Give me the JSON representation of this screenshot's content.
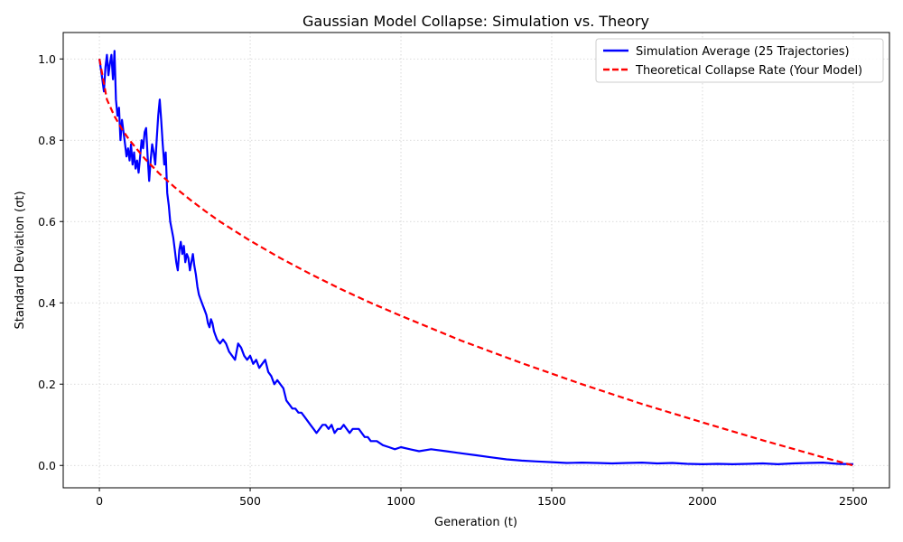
{
  "chart_data": {
    "type": "line",
    "title": "Gaussian Model Collapse: Simulation vs. Theory",
    "xlabel": "Generation (t)",
    "ylabel": "Standard Deviation (σt)",
    "xlim": [
      -120,
      2620
    ],
    "ylim": [
      -0.055,
      1.065
    ],
    "xticks": [
      0,
      500,
      1000,
      1500,
      2000,
      2500
    ],
    "yticks": [
      0.0,
      0.2,
      0.4,
      0.6,
      0.8,
      1.0
    ],
    "xtick_labels": [
      "0",
      "500",
      "1000",
      "1500",
      "2000",
      "2500"
    ],
    "ytick_labels": [
      "0.0",
      "0.2",
      "0.4",
      "0.6",
      "0.8",
      "1.0"
    ],
    "grid": true,
    "legend_position": "top-right",
    "series": [
      {
        "name": "Simulation Average (25 Trajectories)",
        "color": "#0000ff",
        "style": "solid",
        "x": [
          0,
          8,
          15,
          20,
          25,
          30,
          35,
          40,
          45,
          50,
          55,
          60,
          65,
          70,
          75,
          80,
          85,
          90,
          95,
          100,
          105,
          110,
          115,
          120,
          125,
          130,
          135,
          140,
          145,
          150,
          155,
          160,
          165,
          170,
          175,
          180,
          185,
          190,
          195,
          200,
          205,
          210,
          215,
          220,
          225,
          230,
          235,
          240,
          245,
          250,
          255,
          260,
          265,
          270,
          275,
          280,
          285,
          290,
          295,
          300,
          305,
          310,
          315,
          320,
          325,
          330,
          335,
          340,
          345,
          350,
          355,
          360,
          365,
          370,
          375,
          380,
          385,
          390,
          400,
          410,
          420,
          430,
          440,
          450,
          460,
          470,
          480,
          490,
          500,
          510,
          520,
          530,
          540,
          550,
          560,
          570,
          580,
          590,
          600,
          610,
          620,
          630,
          640,
          650,
          660,
          670,
          680,
          690,
          700,
          710,
          720,
          730,
          740,
          750,
          760,
          770,
          780,
          790,
          800,
          810,
          820,
          830,
          840,
          850,
          860,
          870,
          880,
          890,
          900,
          920,
          940,
          960,
          980,
          1000,
          1030,
          1060,
          1100,
          1150,
          1200,
          1250,
          1300,
          1350,
          1400,
          1450,
          1500,
          1550,
          1600,
          1650,
          1700,
          1750,
          1800,
          1850,
          1900,
          1950,
          2000,
          2050,
          2100,
          2150,
          2200,
          2250,
          2300,
          2350,
          2400,
          2450,
          2500
        ],
        "y": [
          1.0,
          0.96,
          0.92,
          0.98,
          1.01,
          0.96,
          0.99,
          1.01,
          0.95,
          1.02,
          0.9,
          0.86,
          0.88,
          0.8,
          0.85,
          0.82,
          0.79,
          0.76,
          0.78,
          0.75,
          0.79,
          0.74,
          0.77,
          0.73,
          0.75,
          0.72,
          0.76,
          0.8,
          0.78,
          0.82,
          0.83,
          0.76,
          0.7,
          0.75,
          0.79,
          0.77,
          0.74,
          0.8,
          0.86,
          0.9,
          0.85,
          0.79,
          0.74,
          0.77,
          0.67,
          0.64,
          0.6,
          0.58,
          0.56,
          0.53,
          0.5,
          0.48,
          0.53,
          0.55,
          0.52,
          0.54,
          0.5,
          0.52,
          0.51,
          0.48,
          0.5,
          0.52,
          0.49,
          0.47,
          0.44,
          0.42,
          0.41,
          0.4,
          0.39,
          0.38,
          0.37,
          0.35,
          0.34,
          0.36,
          0.35,
          0.33,
          0.32,
          0.31,
          0.3,
          0.31,
          0.3,
          0.28,
          0.27,
          0.26,
          0.3,
          0.29,
          0.27,
          0.26,
          0.27,
          0.25,
          0.26,
          0.24,
          0.25,
          0.26,
          0.23,
          0.22,
          0.2,
          0.21,
          0.2,
          0.19,
          0.16,
          0.15,
          0.14,
          0.14,
          0.13,
          0.13,
          0.12,
          0.11,
          0.1,
          0.09,
          0.08,
          0.09,
          0.1,
          0.1,
          0.09,
          0.1,
          0.08,
          0.09,
          0.09,
          0.1,
          0.09,
          0.08,
          0.09,
          0.09,
          0.09,
          0.08,
          0.07,
          0.07,
          0.06,
          0.06,
          0.05,
          0.045,
          0.04,
          0.045,
          0.04,
          0.035,
          0.04,
          0.035,
          0.03,
          0.025,
          0.02,
          0.015,
          0.012,
          0.01,
          0.008,
          0.006,
          0.007,
          0.006,
          0.005,
          0.006,
          0.007,
          0.005,
          0.006,
          0.004,
          0.003,
          0.004,
          0.003,
          0.004,
          0.005,
          0.003,
          0.005,
          0.006,
          0.007,
          0.004,
          0.003
        ]
      },
      {
        "name": "Theoretical Collapse Rate (Your Model)",
        "color": "#ff0000",
        "style": "dashed",
        "formula_shape": "1 - sqrt(t / 2500)",
        "x": [
          0,
          25,
          50,
          75,
          100,
          150,
          200,
          250,
          300,
          350,
          400,
          500,
          600,
          700,
          800,
          900,
          1000,
          1200,
          1400,
          1600,
          1800,
          2000,
          2200,
          2400,
          2500
        ],
        "y": [
          1.0,
          0.9,
          0.859,
          0.827,
          0.8,
          0.755,
          0.717,
          0.684,
          0.654,
          0.626,
          0.6,
          0.553,
          0.51,
          0.471,
          0.434,
          0.4,
          0.368,
          0.307,
          0.252,
          0.2,
          0.151,
          0.106,
          0.062,
          0.02,
          0.0
        ]
      }
    ]
  }
}
